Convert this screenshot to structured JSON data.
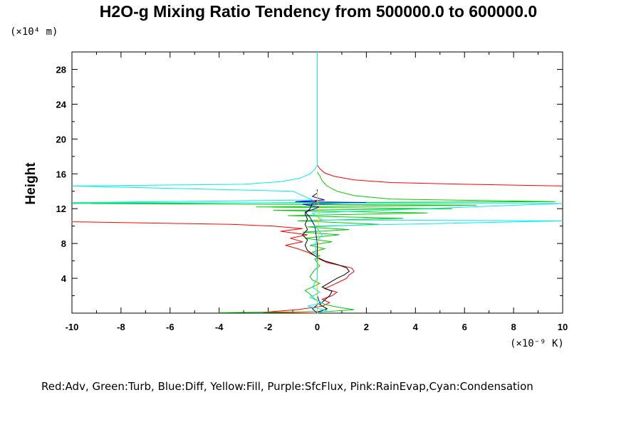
{
  "chart_data": {
    "type": "line",
    "title": "H2O-g Mixing Ratio Tendency from 500000.0 to 600000.0",
    "ylabel": "Height",
    "xlabel": "",
    "x_unit_label": "(×10⁻⁹ K)",
    "y_unit_label": "(×10⁴ m)",
    "xlim": [
      -10,
      10
    ],
    "ylim": [
      0,
      30
    ],
    "x_ticks": [
      -10,
      -8,
      -6,
      -4,
      -2,
      0,
      2,
      4,
      6,
      8,
      10
    ],
    "x_tick_labels": [
      "-10",
      "-8",
      "-6",
      "-4",
      "-2",
      "0",
      "2",
      "4",
      "6",
      "8",
      "10"
    ],
    "y_ticks": [
      4,
      8,
      12,
      16,
      20,
      24,
      28
    ],
    "y_tick_labels": [
      "4",
      "8",
      "12",
      "16",
      "20",
      "24",
      "28"
    ],
    "grid": false,
    "legend_text": "Red:Adv, Green:Turb, Blue:Diff, Yellow:Fill, Purple:SfcFlux, Pink:RainEvap,Cyan:Condensation",
    "series": [
      {
        "color": "#ff0000",
        "points": [
          [
            0,
            0.0
          ],
          [
            -2.2,
            0.1
          ],
          [
            -0.8,
            0.4
          ],
          [
            0.2,
            0.8
          ],
          [
            0.5,
            1.2
          ],
          [
            0.2,
            1.6
          ],
          [
            0.6,
            2.0
          ],
          [
            0.8,
            2.4
          ],
          [
            0.3,
            2.8
          ],
          [
            0.6,
            3.2
          ],
          [
            0.9,
            3.6
          ],
          [
            1.2,
            4.0
          ],
          [
            1.3,
            4.4
          ],
          [
            1.5,
            4.8
          ],
          [
            1.4,
            5.2
          ],
          [
            0.9,
            5.5
          ],
          [
            0.4,
            5.8
          ],
          [
            0.1,
            6.2
          ],
          [
            -0.1,
            6.6
          ],
          [
            -0.4,
            7.0
          ],
          [
            -0.8,
            7.4
          ],
          [
            -1.3,
            7.8
          ],
          [
            -0.6,
            8.2
          ],
          [
            -1.1,
            8.6
          ],
          [
            -0.4,
            9.0
          ],
          [
            -1.5,
            9.4
          ],
          [
            -0.6,
            9.7
          ],
          [
            -1.8,
            10.0
          ],
          [
            -3.5,
            10.2
          ],
          [
            -10,
            10.5
          ],
          [
            -10,
            10.6
          ]
        ]
      },
      {
        "color": "#ff0000",
        "points": [
          [
            10,
            14.6
          ],
          [
            6,
            14.8
          ],
          [
            3,
            15.0
          ],
          [
            1.5,
            15.3
          ],
          [
            0.7,
            15.7
          ],
          [
            0.3,
            16.1
          ],
          [
            0.1,
            16.6
          ],
          [
            0,
            17.0
          ]
        ]
      },
      {
        "color": "#00cc00",
        "points": [
          [
            -4.0,
            0.05
          ],
          [
            0.5,
            0.2
          ],
          [
            1.5,
            0.4
          ],
          [
            0.8,
            0.7
          ],
          [
            0.3,
            1.0
          ],
          [
            -0.1,
            1.6
          ],
          [
            -0.3,
            2.2
          ],
          [
            -0.5,
            2.6
          ],
          [
            -0.2,
            3.0
          ],
          [
            0.1,
            3.4
          ],
          [
            -0.2,
            3.8
          ],
          [
            -0.3,
            4.2
          ],
          [
            -0.2,
            4.6
          ],
          [
            -0.1,
            5.0
          ],
          [
            0.1,
            5.4
          ],
          [
            0.0,
            5.8
          ],
          [
            -0.1,
            6.2
          ],
          [
            0.1,
            6.6
          ],
          [
            -0.2,
            7.0
          ],
          [
            0.3,
            7.4
          ],
          [
            -0.3,
            7.8
          ],
          [
            0.6,
            8.2
          ],
          [
            -0.5,
            8.6
          ],
          [
            0.9,
            9.0
          ],
          [
            -0.6,
            9.3
          ],
          [
            1.3,
            9.6
          ],
          [
            -0.4,
            9.9
          ],
          [
            2.5,
            10.2
          ],
          [
            -0.8,
            10.6
          ],
          [
            3.5,
            10.9
          ],
          [
            -1.2,
            11.2
          ],
          [
            4.5,
            11.5
          ],
          [
            -1.8,
            11.8
          ],
          [
            5.5,
            12.0
          ],
          [
            -2.5,
            12.2
          ],
          [
            6.5,
            12.4
          ],
          [
            -10,
            12.6
          ],
          [
            9.7,
            12.8
          ],
          [
            3.0,
            13.1
          ],
          [
            1.5,
            13.5
          ],
          [
            0.8,
            14.0
          ],
          [
            0.4,
            14.6
          ],
          [
            0.2,
            15.2
          ],
          [
            0.1,
            15.8
          ],
          [
            0,
            16.2
          ]
        ]
      },
      {
        "color": "#0000cc",
        "points": [
          [
            0,
            0.0
          ],
          [
            -0.2,
            0.5
          ],
          [
            0.1,
            1.2
          ],
          [
            0.0,
            2.0
          ],
          [
            0.0,
            4.0
          ],
          [
            0.0,
            6.0
          ],
          [
            0.0,
            8.0
          ],
          [
            -0.1,
            10.0
          ],
          [
            -0.3,
            11.0
          ],
          [
            -0.5,
            11.6
          ],
          [
            0.1,
            12.2
          ],
          [
            -0.6,
            12.5
          ],
          [
            2.0,
            12.7
          ],
          [
            -0.9,
            12.8
          ],
          [
            0.3,
            13.0
          ],
          [
            -0.2,
            13.4
          ],
          [
            0.0,
            13.8
          ],
          [
            0.0,
            14.2
          ]
        ]
      },
      {
        "color": "#000000",
        "points": [
          [
            0,
            0.1
          ],
          [
            0.4,
            0.5
          ],
          [
            0.1,
            1.0
          ],
          [
            0.3,
            1.5
          ],
          [
            0.5,
            2.0
          ],
          [
            0.6,
            2.5
          ],
          [
            0.2,
            3.0
          ],
          [
            0.5,
            3.5
          ],
          [
            0.8,
            4.0
          ],
          [
            1.1,
            4.4
          ],
          [
            1.3,
            4.8
          ],
          [
            1.2,
            5.2
          ],
          [
            0.8,
            5.6
          ],
          [
            0.3,
            6.0
          ],
          [
            0.0,
            6.4
          ],
          [
            -0.2,
            6.8
          ],
          [
            -0.4,
            7.2
          ],
          [
            -0.5,
            7.8
          ],
          [
            -0.4,
            8.4
          ],
          [
            -0.6,
            9.0
          ],
          [
            -0.4,
            9.6
          ],
          [
            -0.5,
            10.2
          ],
          [
            -0.4,
            10.8
          ],
          [
            -0.5,
            11.4
          ],
          [
            -0.3,
            12.0
          ],
          [
            -0.2,
            12.6
          ],
          [
            0.0,
            13.0
          ]
        ]
      },
      {
        "color": "#ffcc00",
        "points": [
          [
            0,
            0
          ],
          [
            0.0,
            4.0
          ],
          [
            0.05,
            8.0
          ],
          [
            0.05,
            11.0
          ],
          [
            0.1,
            12.0
          ],
          [
            0.0,
            13.0
          ],
          [
            0.0,
            14.0
          ]
        ]
      },
      {
        "color": "#00eeee",
        "points": [
          [
            0,
            0.0
          ],
          [
            0.4,
            0.3
          ],
          [
            -0.4,
            0.8
          ],
          [
            0.2,
            1.2
          ],
          [
            -0.3,
            1.8
          ],
          [
            0.1,
            2.4
          ],
          [
            -0.2,
            3.0
          ],
          [
            0.0,
            4.0
          ],
          [
            0.0,
            6.0
          ],
          [
            -0.1,
            8.0
          ],
          [
            0.2,
            9.0
          ],
          [
            -0.1,
            10.0
          ],
          [
            10,
            10.6
          ],
          [
            0.2,
            10.7
          ],
          [
            -0.2,
            11.5
          ],
          [
            10,
            12.6
          ],
          [
            -10,
            12.7
          ],
          [
            -0.2,
            13.0
          ],
          [
            -1.0,
            14.0
          ],
          [
            -10,
            14.6
          ],
          [
            -3.0,
            14.8
          ],
          [
            -1.5,
            15.1
          ],
          [
            -0.7,
            15.5
          ],
          [
            -0.3,
            16.0
          ],
          [
            -0.1,
            16.5
          ],
          [
            0,
            17.0
          ],
          [
            0,
            30
          ]
        ]
      }
    ]
  }
}
